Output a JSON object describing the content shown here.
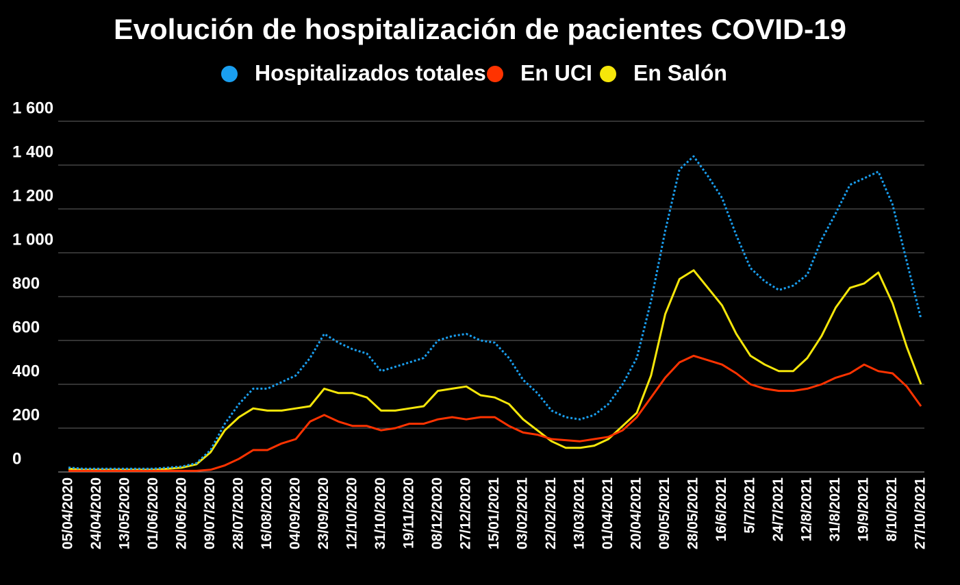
{
  "chart_data": {
    "type": "line",
    "title": "Evolución de hospitalización de pacientes COVID-19",
    "categories": [
      "05/04/2020",
      null,
      "24/04/2020",
      null,
      "13/05/2020",
      null,
      "01/06/2020",
      null,
      "20/06/2020",
      null,
      "09/07/2020",
      null,
      "28/07/2020",
      null,
      "16/08/2020",
      null,
      "04/09/2020",
      null,
      "23/09/2020",
      null,
      "12/10/2020",
      null,
      "31/10/2020",
      null,
      "19/11/2020",
      null,
      "08/12/2020",
      null,
      "27/12/2020",
      null,
      "15/01/2021",
      null,
      "03/02/2021",
      null,
      "22/02/2021",
      null,
      "13/03/2021",
      null,
      "01/04/2021",
      null,
      "20/04/2021",
      null,
      "09/05/2021",
      null,
      "28/05/2021",
      null,
      "16/6/2021",
      null,
      "5/7/2021",
      null,
      "24/7/2021",
      null,
      "12/8/2021",
      null,
      "31/8/2021",
      null,
      "19/9/2021",
      null,
      "8/10/2021",
      null,
      "27/10/2021"
    ],
    "series": [
      {
        "name": "Hospitalizados totales",
        "color": "#1a9ff0",
        "dashed": true,
        "values": [
          20,
          15,
          15,
          15,
          15,
          15,
          15,
          20,
          25,
          40,
          100,
          220,
          310,
          380,
          380,
          410,
          440,
          520,
          630,
          590,
          560,
          540,
          460,
          480,
          500,
          520,
          600,
          620,
          630,
          600,
          590,
          520,
          420,
          360,
          280,
          250,
          240,
          260,
          310,
          400,
          520,
          780,
          1100,
          1380,
          1440,
          1350,
          1250,
          1080,
          930,
          870,
          830,
          850,
          900,
          1060,
          1180,
          1310,
          1340,
          1370,
          1220,
          960,
          700
        ]
      },
      {
        "name": "En UCI",
        "color": "#ff3300",
        "values": [
          5,
          5,
          5,
          5,
          5,
          5,
          5,
          5,
          5,
          5,
          10,
          30,
          60,
          100,
          100,
          130,
          150,
          230,
          260,
          230,
          210,
          210,
          190,
          200,
          220,
          220,
          240,
          250,
          240,
          250,
          250,
          210,
          180,
          170,
          150,
          145,
          140,
          150,
          160,
          190,
          250,
          340,
          430,
          500,
          530,
          510,
          490,
          450,
          400,
          380,
          370,
          370,
          380,
          400,
          430,
          450,
          490,
          460,
          450,
          390,
          300
        ]
      },
      {
        "name": "En Salón",
        "color": "#f5e60a",
        "values": [
          15,
          10,
          10,
          10,
          10,
          10,
          10,
          15,
          20,
          35,
          90,
          190,
          250,
          290,
          280,
          280,
          290,
          300,
          380,
          360,
          360,
          340,
          280,
          280,
          290,
          300,
          370,
          380,
          390,
          350,
          340,
          310,
          240,
          190,
          140,
          110,
          110,
          120,
          150,
          210,
          270,
          440,
          720,
          880,
          920,
          840,
          760,
          630,
          530,
          490,
          460,
          460,
          520,
          620,
          750,
          840,
          860,
          910,
          770,
          570,
          400
        ]
      }
    ],
    "ylim": [
      0,
      1600
    ],
    "yticks": [
      0,
      200,
      400,
      600,
      800,
      {
        "value": 1000,
        "label": "1 000"
      },
      {
        "value": 1200,
        "label": "1 200"
      },
      {
        "value": 1400,
        "label": "1 400"
      },
      {
        "value": 1600,
        "label": "1 600"
      }
    ],
    "grid": true
  }
}
